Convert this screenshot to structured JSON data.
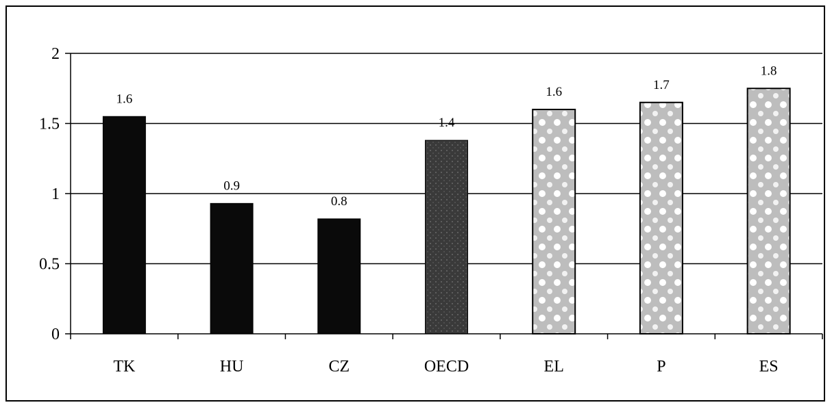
{
  "chart_data": {
    "type": "bar",
    "title": "",
    "xlabel": "",
    "ylabel": "",
    "categories": [
      "TK",
      "HU",
      "CZ",
      "OECD",
      "EL",
      "P",
      "ES"
    ],
    "values": [
      1.55,
      0.93,
      0.82,
      1.38,
      1.6,
      1.65,
      1.75
    ],
    "data_labels": [
      "1.6",
      "0.9",
      "0.8",
      "1.4",
      "1.6",
      "1.7",
      "1.8"
    ],
    "ylim": [
      0,
      2
    ],
    "yticks": [
      0,
      0.5,
      1,
      1.5,
      2
    ],
    "ytick_labels": [
      "0",
      "0.5",
      "1",
      "1.5",
      "2"
    ],
    "grid": true,
    "legend": false,
    "bar_styles": [
      "solid-black",
      "solid-black",
      "solid-black",
      "dark-speckled",
      "light-dotted",
      "light-dotted",
      "light-dotted"
    ],
    "colors": {
      "solid-black": "#0a0a0a",
      "dark-speckled": "#3a3a3a",
      "light-dotted": "#c8c8c8"
    }
  }
}
